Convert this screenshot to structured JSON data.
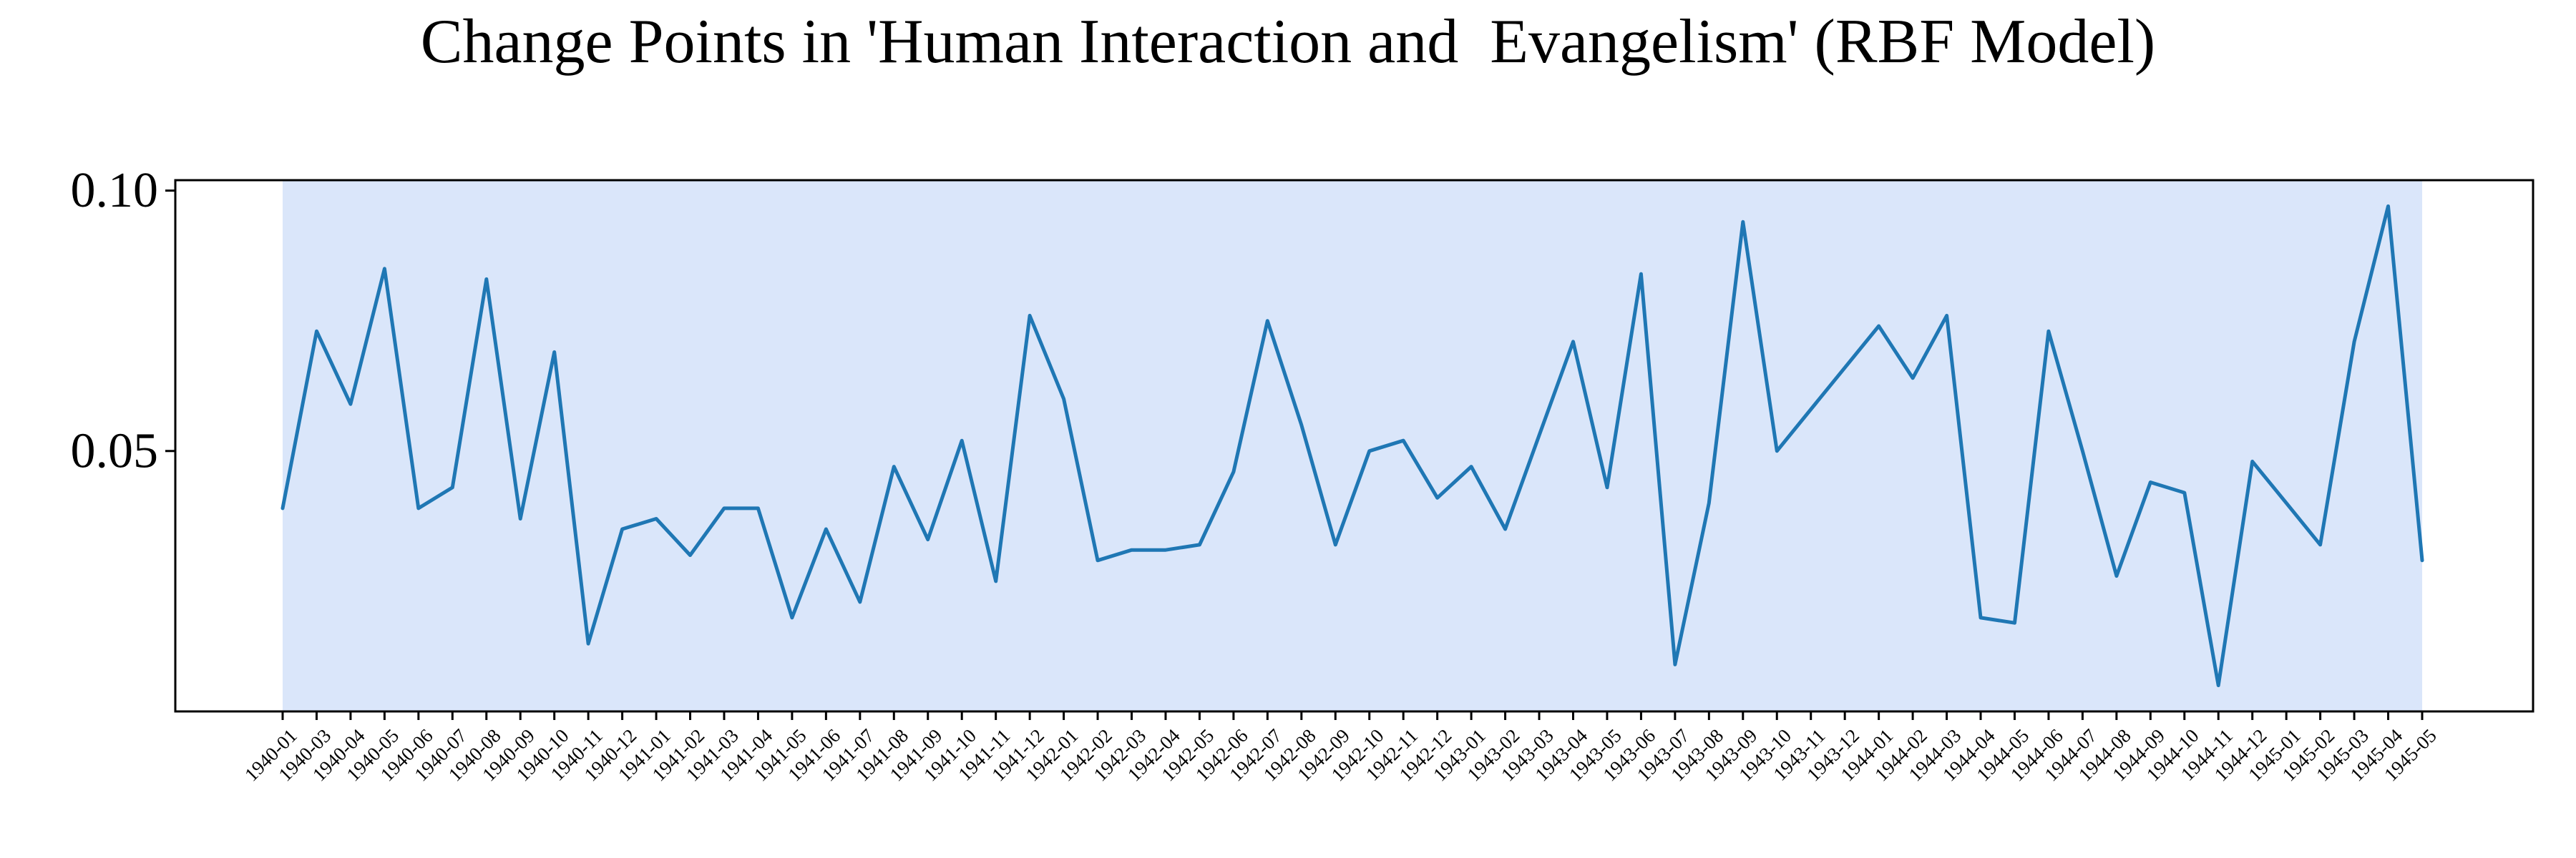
{
  "chart_data": {
    "type": "line",
    "title": "Change Points in 'Human Interaction and  Evangelism' (RBF Model)",
    "xlabel": "",
    "ylabel": "",
    "ylim": [
      0.0,
      0.102
    ],
    "yticks": [
      0.05,
      0.1
    ],
    "ytick_labels": [
      "0.05",
      "0.10"
    ],
    "grid": false,
    "legend": "none",
    "colors": {
      "line": "#1f77b4",
      "shaded_region": "#dae6fa",
      "axes": "#000000"
    },
    "shaded_regions": [
      {
        "start": "1940-01",
        "end": "1945-05"
      }
    ],
    "x": [
      "1940-01",
      "1940-03",
      "1940-04",
      "1940-05",
      "1940-06",
      "1940-07",
      "1940-08",
      "1940-09",
      "1940-10",
      "1940-11",
      "1940-12",
      "1941-01",
      "1941-02",
      "1941-03",
      "1941-04",
      "1941-05",
      "1941-06",
      "1941-07",
      "1941-08",
      "1941-09",
      "1941-10",
      "1941-11",
      "1941-12",
      "1942-01",
      "1942-02",
      "1942-03",
      "1942-04",
      "1942-05",
      "1942-06",
      "1942-07",
      "1942-08",
      "1942-09",
      "1942-10",
      "1942-11",
      "1942-12",
      "1943-01",
      "1943-02",
      "1943-03",
      "1943-04",
      "1943-05",
      "1943-06",
      "1943-07",
      "1943-08",
      "1943-09",
      "1943-10",
      "1943-11",
      "1943-12",
      "1944-01",
      "1944-02",
      "1944-03",
      "1944-04",
      "1944-05",
      "1944-06",
      "1944-07",
      "1944-08",
      "1944-09",
      "1944-10",
      "1944-11",
      "1944-12",
      "1945-01",
      "1945-02",
      "1945-03",
      "1945-04",
      "1945-05"
    ],
    "series": [
      {
        "values": [
          0.039,
          0.073,
          0.059,
          0.085,
          0.039,
          0.043,
          0.083,
          0.037,
          0.069,
          0.013,
          0.035,
          0.037,
          0.03,
          0.039,
          0.039,
          0.018,
          0.035,
          0.021,
          0.047,
          0.033,
          0.052,
          0.025,
          0.076,
          0.06,
          0.029,
          0.031,
          0.031,
          0.032,
          0.046,
          0.075,
          0.055,
          0.032,
          0.05,
          0.052,
          0.041,
          0.047,
          0.035,
          0.053,
          0.071,
          0.043,
          0.084,
          0.009,
          0.04,
          0.094,
          0.05,
          0.058,
          0.066,
          0.074,
          0.064,
          0.076,
          0.018,
          0.017,
          0.073,
          0.05,
          0.026,
          0.044,
          0.042,
          0.005,
          0.048,
          0.04,
          0.032,
          0.071,
          0.097,
          0.029
        ]
      }
    ]
  }
}
